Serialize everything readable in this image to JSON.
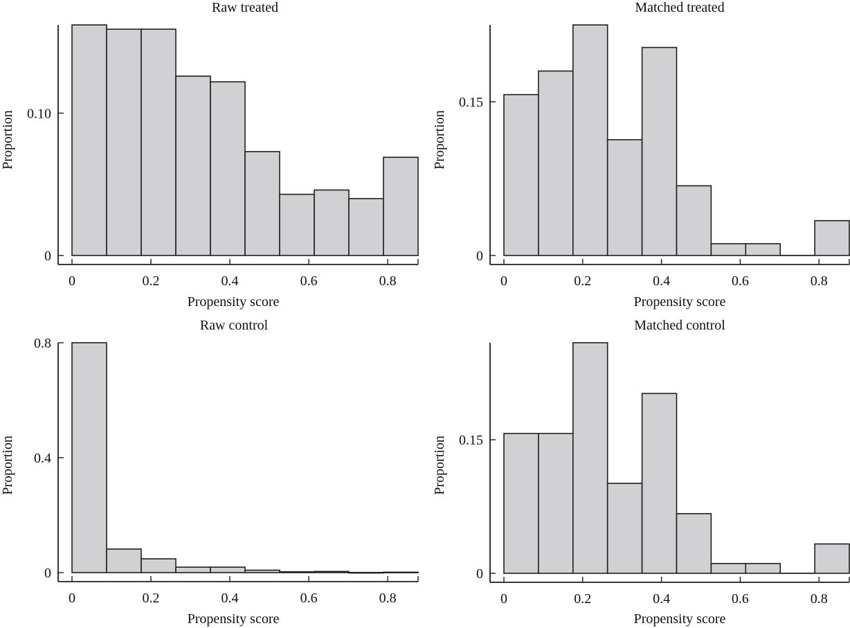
{
  "chart_data": [
    {
      "type": "bar",
      "id": "raw-treated",
      "title": "Raw treated",
      "xlabel": "Propensity score",
      "ylabel": "Proportion",
      "bin_edges": [
        0,
        0.0877,
        0.1754,
        0.2631,
        0.3508,
        0.4385,
        0.5262,
        0.6139,
        0.7016,
        0.7893,
        0.877
      ],
      "values": [
        0.162,
        0.159,
        0.159,
        0.126,
        0.122,
        0.073,
        0.043,
        0.046,
        0.04,
        0.069
      ],
      "xlim": [
        0,
        0.877
      ],
      "ylim": [
        0,
        0.162
      ],
      "xticks": [
        0,
        0.2,
        0.4,
        0.6,
        0.8
      ],
      "xtick_labels": [
        "0",
        "0.2",
        "0.4",
        "0.6",
        "0.8"
      ],
      "yticks": [
        0,
        0.1
      ],
      "ytick_labels": [
        "0",
        "0.10"
      ],
      "grid": false,
      "legend": "none"
    },
    {
      "type": "bar",
      "id": "matched-treated",
      "title": "Matched treated",
      "xlabel": "Propensity score",
      "ylabel": "Proportion",
      "bin_edges": [
        0,
        0.0877,
        0.1754,
        0.2631,
        0.3508,
        0.4385,
        0.5262,
        0.6139,
        0.7016,
        0.7893,
        0.877
      ],
      "values": [
        0.157,
        0.18,
        0.225,
        0.113,
        0.203,
        0.068,
        0.0115,
        0.0115,
        0.0,
        0.034
      ],
      "xlim": [
        0,
        0.877
      ],
      "ylim": [
        0,
        0.225
      ],
      "xticks": [
        0,
        0.2,
        0.4,
        0.6,
        0.8
      ],
      "xtick_labels": [
        "0",
        "0.2",
        "0.4",
        "0.6",
        "0.8"
      ],
      "yticks": [
        0,
        0.15
      ],
      "ytick_labels": [
        "0",
        "0.15"
      ],
      "grid": false,
      "legend": "none"
    },
    {
      "type": "bar",
      "id": "raw-control",
      "title": "Raw control",
      "xlabel": "Propensity score",
      "ylabel": "Proportion",
      "bin_edges": [
        0,
        0.0877,
        0.1754,
        0.2631,
        0.3508,
        0.4385,
        0.5262,
        0.6139,
        0.7016,
        0.7893,
        0.877
      ],
      "values": [
        0.8,
        0.082,
        0.048,
        0.019,
        0.019,
        0.0085,
        0.003,
        0.004,
        0.0005,
        0.0015
      ],
      "xlim": [
        0,
        0.877
      ],
      "ylim": [
        0,
        0.8
      ],
      "xticks": [
        0,
        0.2,
        0.4,
        0.6,
        0.8
      ],
      "xtick_labels": [
        "0",
        "0.2",
        "0.4",
        "0.6",
        "0.8"
      ],
      "yticks": [
        0,
        0.4,
        0.8
      ],
      "ytick_labels": [
        "0",
        "0.4",
        "0.8"
      ],
      "grid": false,
      "legend": "none"
    },
    {
      "type": "bar",
      "id": "matched-control",
      "title": "Matched control",
      "xlabel": "Propensity score",
      "ylabel": "Proportion",
      "bin_edges": [
        0,
        0.0877,
        0.1754,
        0.2631,
        0.3508,
        0.4385,
        0.5262,
        0.6139,
        0.7016,
        0.7893,
        0.877
      ],
      "values": [
        0.157,
        0.157,
        0.259,
        0.101,
        0.202,
        0.067,
        0.011,
        0.011,
        0.0,
        0.033
      ],
      "xlim": [
        0,
        0.877
      ],
      "ylim": [
        0,
        0.259
      ],
      "xticks": [
        0,
        0.2,
        0.4,
        0.6,
        0.8
      ],
      "xtick_labels": [
        "0",
        "0.2",
        "0.4",
        "0.6",
        "0.8"
      ],
      "yticks": [
        0,
        0.15
      ],
      "ytick_labels": [
        "0",
        "0.15"
      ],
      "grid": false,
      "legend": "none"
    }
  ]
}
